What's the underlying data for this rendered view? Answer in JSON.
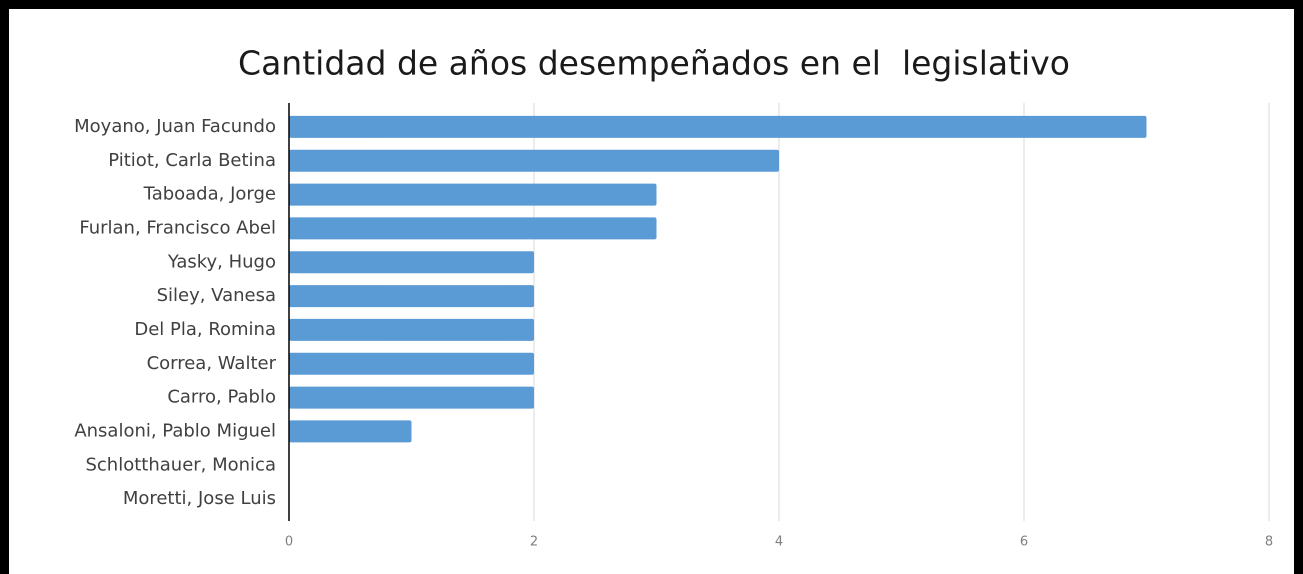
{
  "chart_data": {
    "type": "barh",
    "title": "Cantidad de años desempeñados en el  legislativo",
    "categories": [
      "Moyano, Juan Facundo",
      "Pitiot, Carla Betina",
      "Taboada, Jorge",
      "Furlan, Francisco Abel",
      "Yasky, Hugo",
      "Siley, Vanesa",
      "Del Pla, Romina",
      "Correa, Walter",
      "Carro, Pablo",
      "Ansaloni, Pablo Miguel",
      "Schlotthauer, Monica",
      "Moretti, Jose Luis"
    ],
    "values": [
      7,
      4,
      3,
      3,
      2,
      2,
      2,
      2,
      2,
      1,
      0,
      0
    ],
    "color": "#5b9bd5",
    "xlim": [
      0,
      8
    ],
    "xticks": [
      0,
      2,
      4,
      6,
      8
    ],
    "grid": true
  }
}
